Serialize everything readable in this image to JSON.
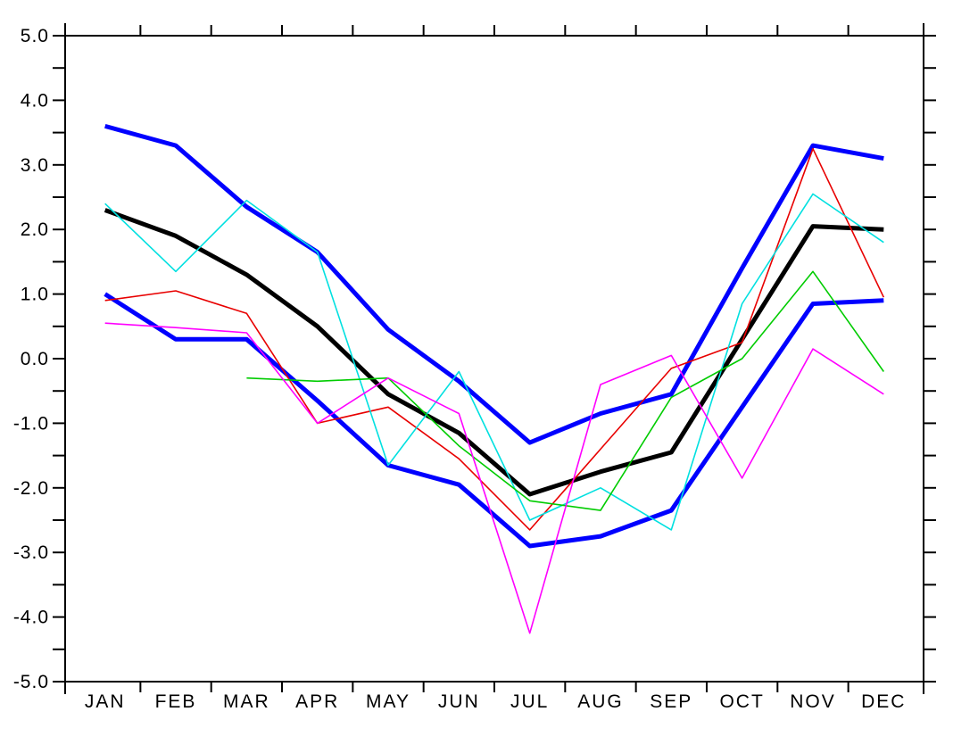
{
  "figure": {
    "background": "#ffffff",
    "frame_color": "#000000"
  },
  "chart_data": {
    "type": "line",
    "title": "",
    "xlabel": "",
    "ylabel": "",
    "categories": [
      "JAN",
      "FEB",
      "MAR",
      "APR",
      "MAY",
      "JUN",
      "JUL",
      "AUG",
      "SEP",
      "OCT",
      "NOV",
      "DEC"
    ],
    "ylim": [
      -5.0,
      5.0
    ],
    "y_major_step": 1.0,
    "y_minor_step": 0.5,
    "y_tick_labels": [
      "5.0",
      "4.0",
      "3.0",
      "2.0",
      "1.0",
      "0.0",
      "-1.0",
      "-2.0",
      "-3.0",
      "-4.0",
      "-5.0"
    ],
    "grid": "off",
    "legend": "none",
    "series": [
      {
        "name": "upper-envelope-blue",
        "color": "#0000ff",
        "stroke_width": 5,
        "values": [
          3.6,
          3.3,
          2.35,
          1.65,
          0.45,
          -0.35,
          -1.3,
          -0.85,
          -0.55,
          1.4,
          3.3,
          3.1
        ]
      },
      {
        "name": "ensemble-mean-black",
        "color": "#000000",
        "stroke_width": 5,
        "values": [
          2.3,
          1.9,
          1.3,
          0.5,
          -0.55,
          -1.15,
          -2.1,
          -1.75,
          -1.45,
          0.3,
          2.05,
          2.0
        ]
      },
      {
        "name": "lower-envelope-blue",
        "color": "#0000ff",
        "stroke_width": 5,
        "values": [
          1.0,
          0.3,
          0.3,
          -0.65,
          -1.65,
          -1.95,
          -2.9,
          -2.75,
          -2.35,
          -0.75,
          0.85,
          0.9
        ]
      },
      {
        "name": "member-red",
        "color": "#e80000",
        "stroke_width": 1.6,
        "values": [
          0.9,
          1.05,
          0.7,
          -1.0,
          -0.75,
          -1.55,
          -2.65,
          -1.4,
          -0.15,
          0.25,
          3.25,
          0.95
        ]
      },
      {
        "name": "member-cyan",
        "color": "#00e0e0",
        "stroke_width": 1.6,
        "values": [
          2.4,
          1.35,
          2.45,
          1.65,
          -1.65,
          -0.2,
          -2.5,
          -2.0,
          -2.65,
          0.85,
          2.55,
          1.8
        ]
      },
      {
        "name": "member-green",
        "color": "#00cc00",
        "stroke_width": 1.6,
        "values": [
          null,
          null,
          -0.3,
          -0.35,
          -0.3,
          -1.35,
          -2.2,
          -2.35,
          -0.6,
          0.0,
          1.35,
          -0.2
        ]
      },
      {
        "name": "member-magenta",
        "color": "#ff00ff",
        "stroke_width": 1.6,
        "values": [
          0.55,
          0.48,
          0.4,
          -1.0,
          -0.3,
          -0.85,
          -4.25,
          -0.4,
          0.05,
          -1.85,
          0.15,
          -0.55
        ]
      }
    ]
  }
}
